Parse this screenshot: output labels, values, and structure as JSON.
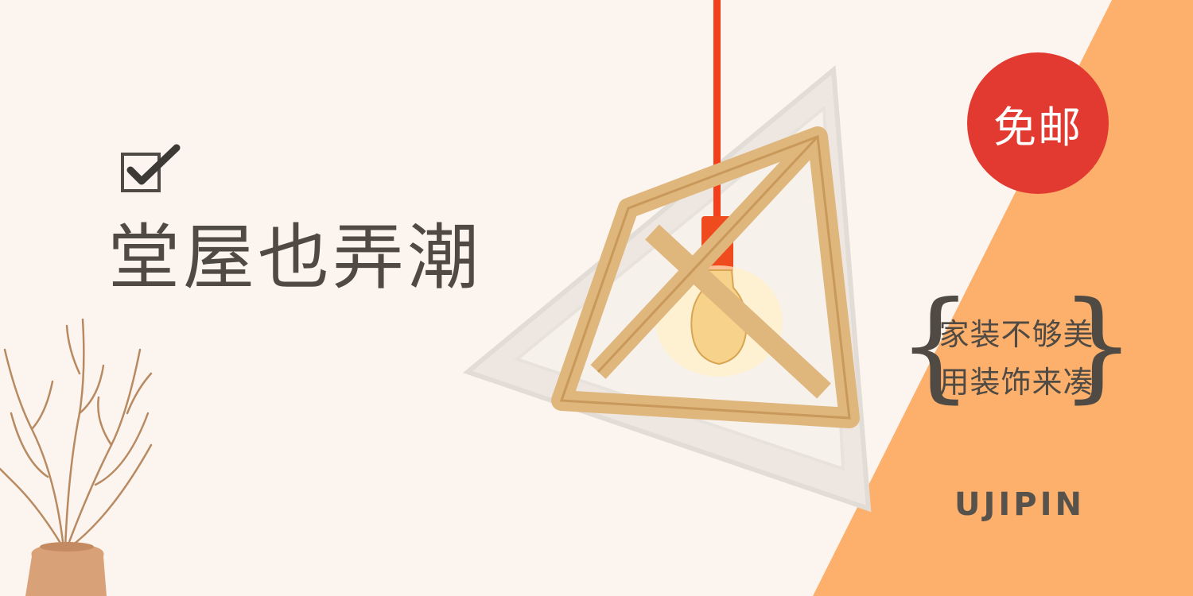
{
  "headline": "堂屋也弄潮",
  "badge": "免邮",
  "slogan": {
    "line1": "家装不够美",
    "line2": "用装饰来凑"
  },
  "brand": "UJIPIN",
  "icons": {
    "checkbox": "checked-box-icon",
    "lamp": "wooden-pendant-lamp",
    "plant": "dried-branches-vase"
  },
  "colors": {
    "background": "#fcf5ef",
    "panel": "#fcb06c",
    "badge": "#e23a30",
    "text": "#4f4a43",
    "cord": "#f2401c",
    "wood": "#e8c48e"
  }
}
